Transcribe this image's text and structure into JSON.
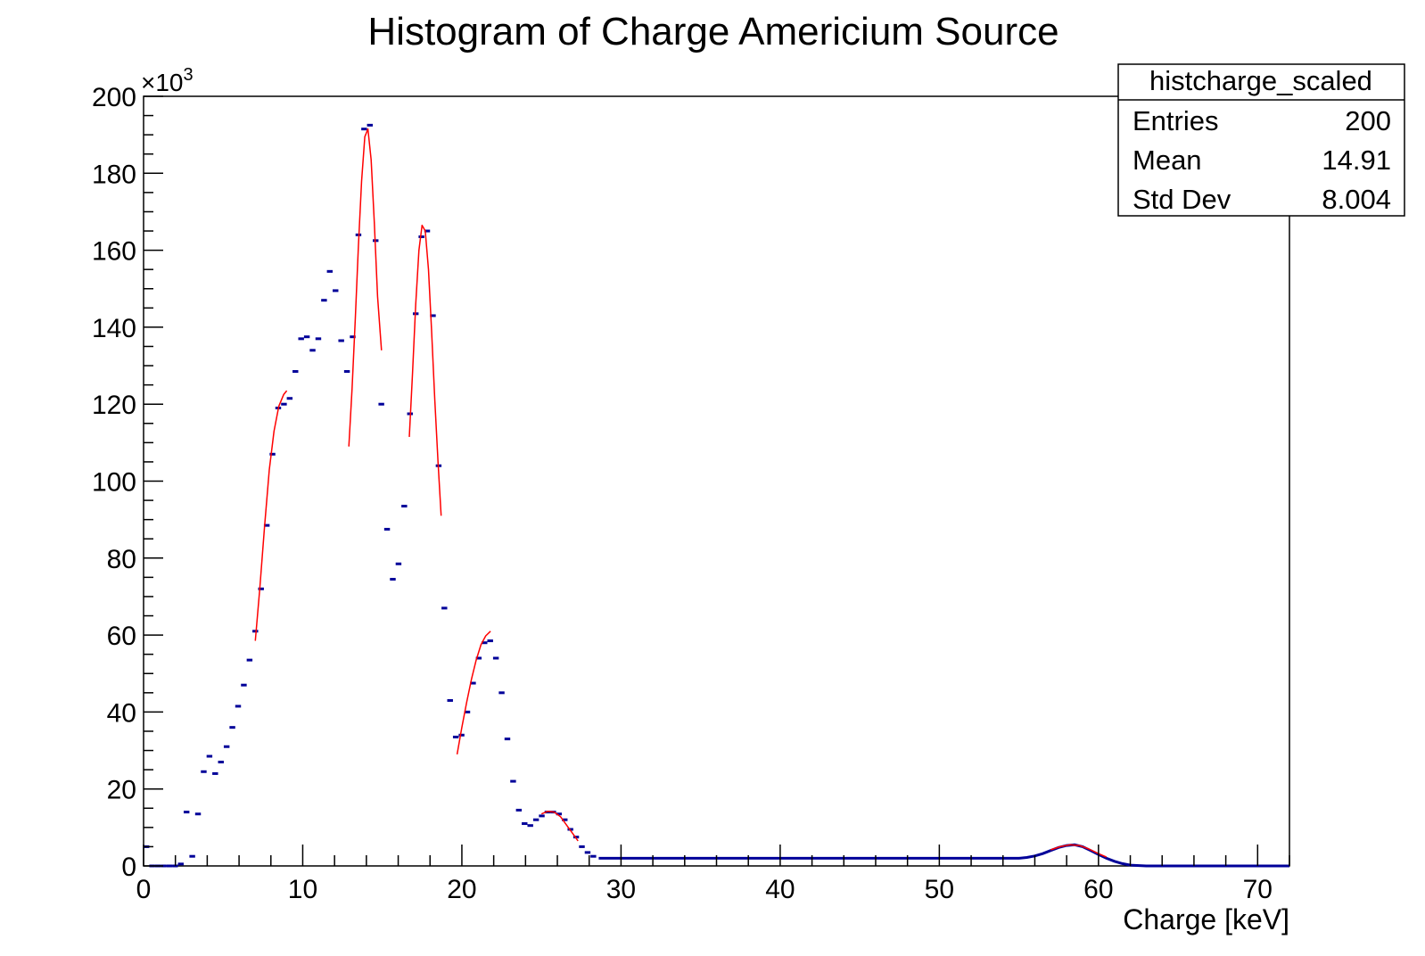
{
  "chart_data": {
    "type": "scatter",
    "title": "Histogram of Charge Americium Source",
    "xlabel": "Charge [keV]",
    "ylabel": "",
    "xlim": [
      0,
      72
    ],
    "ylim": [
      0,
      200000
    ],
    "y_exponent_label": "×10",
    "y_exponent_power": "3",
    "x_ticks": [
      0,
      10,
      20,
      30,
      40,
      50,
      60,
      70
    ],
    "x_tick_labels": [
      "0",
      "10",
      "20",
      "30",
      "40",
      "50",
      "60",
      "70"
    ],
    "y_ticks": [
      0,
      20000,
      40000,
      60000,
      80000,
      100000,
      120000,
      140000,
      160000,
      180000,
      200000
    ],
    "y_tick_labels": [
      "0",
      "20",
      "40",
      "60",
      "80",
      "100",
      "120",
      "140",
      "160",
      "180",
      "200"
    ],
    "grid": false,
    "legend": "none",
    "stats_box": {
      "title": "histcharge_scaled",
      "rows": [
        {
          "label": "Entries",
          "value": "200"
        },
        {
          "label": "Mean",
          "value": "14.91"
        },
        {
          "label": "Std Dev",
          "value": "8.004"
        }
      ]
    },
    "colors": {
      "data": "#000099",
      "fit": "#ff0000"
    },
    "series": [
      {
        "name": "histcharge_scaled",
        "kind": "points",
        "bin_width": 0.36,
        "x": [
          0.18,
          0.54,
          0.9,
          1.26,
          1.62,
          1.98,
          2.34,
          2.7,
          3.06,
          3.42,
          3.78,
          4.14,
          4.5,
          4.86,
          5.22,
          5.58,
          5.94,
          6.3,
          6.66,
          7.02,
          7.38,
          7.74,
          8.1,
          8.46,
          8.82,
          9.18,
          9.54,
          9.9,
          10.26,
          10.62,
          10.98,
          11.34,
          11.7,
          12.06,
          12.42,
          12.78,
          13.14,
          13.5,
          13.86,
          14.22,
          14.58,
          14.94,
          15.3,
          15.66,
          16.02,
          16.38,
          16.74,
          17.1,
          17.46,
          17.82,
          18.18,
          18.54,
          18.9,
          19.26,
          19.62,
          19.98,
          20.34,
          20.7,
          21.06,
          21.42,
          21.78,
          22.14,
          22.5,
          22.86,
          23.22,
          23.58,
          23.94,
          24.3,
          24.66,
          25.02,
          25.38,
          25.74,
          26.1,
          26.46,
          26.82,
          27.18,
          27.54,
          27.9,
          28.26
        ],
        "y": [
          5000,
          0,
          0,
          0,
          0,
          0,
          500,
          14000,
          2500,
          13500,
          24500,
          28500,
          24000,
          27000,
          31000,
          36000,
          41500,
          47000,
          53500,
          61000,
          72000,
          88500,
          107000,
          119000,
          120000,
          121500,
          128500,
          137000,
          137500,
          134000,
          137000,
          147000,
          154500,
          149500,
          136500,
          128500,
          137500,
          164000,
          191500,
          192500,
          162500,
          120000,
          87500,
          74500,
          78500,
          93500,
          117500,
          143500,
          163500,
          165000,
          143000,
          104000,
          67000,
          43000,
          33500,
          34000,
          40000,
          47500,
          54000,
          58000,
          58500,
          54000,
          45000,
          33000,
          22000,
          14500,
          11000,
          10500,
          12000,
          13000,
          14000,
          14000,
          13500,
          12000,
          9500,
          7500,
          5000,
          3500,
          2500
        ]
      },
      {
        "name": "histcharge_scaled_tail",
        "kind": "step",
        "x": [
          28.6,
          29,
          30,
          31,
          32,
          33,
          34,
          35,
          36,
          37,
          38,
          39,
          40,
          41,
          42,
          43,
          44,
          45,
          46,
          47,
          48,
          49,
          50,
          51,
          52,
          53,
          54,
          55,
          55.5,
          56,
          56.5,
          57,
          57.5,
          58,
          58.5,
          59,
          59.5,
          60,
          60.5,
          61,
          61.5,
          62,
          63,
          64,
          65,
          66,
          67,
          68,
          69,
          70,
          71,
          72
        ],
        "y": [
          2000,
          2000,
          2000,
          2000,
          2000,
          2000,
          2000,
          2000,
          2000,
          2000,
          2000,
          2000,
          2000,
          2000,
          2000,
          2000,
          2000,
          2000,
          2000,
          2000,
          2000,
          2000,
          2000,
          2000,
          2000,
          2000,
          2000,
          2000,
          2200,
          2600,
          3200,
          4000,
          4800,
          5300,
          5500,
          5000,
          4000,
          3000,
          2000,
          1200,
          600,
          200,
          0,
          0,
          0,
          0,
          0,
          0,
          0,
          0,
          0,
          0
        ]
      },
      {
        "name": "fit1",
        "kind": "line",
        "x": [
          7.02,
          7.3,
          7.6,
          7.9,
          8.2,
          8.5,
          8.8,
          9.0
        ],
        "y": [
          58500,
          72000,
          88000,
          103000,
          113000,
          119500,
          122500,
          123500
        ]
      },
      {
        "name": "fit2",
        "kind": "line",
        "x": [
          12.9,
          13.1,
          13.3,
          13.5,
          13.7,
          13.9,
          14.1,
          14.3,
          14.5,
          14.7,
          14.95
        ],
        "y": [
          109000,
          124000,
          142000,
          161000,
          178000,
          189500,
          191500,
          183500,
          167000,
          148000,
          134000
        ]
      },
      {
        "name": "fit3",
        "kind": "line",
        "x": [
          16.7,
          16.9,
          17.1,
          17.3,
          17.5,
          17.7,
          17.9,
          18.1,
          18.3,
          18.5,
          18.7
        ],
        "y": [
          111500,
          128000,
          146000,
          160000,
          166500,
          165000,
          155000,
          139000,
          121000,
          105000,
          91000
        ]
      },
      {
        "name": "fit4",
        "kind": "line",
        "x": [
          19.7,
          20.0,
          20.3,
          20.6,
          20.9,
          21.2,
          21.5,
          21.8
        ],
        "y": [
          29000,
          36000,
          42500,
          48500,
          53500,
          57500,
          59800,
          61000
        ]
      },
      {
        "name": "fit5",
        "kind": "line",
        "x": [
          25.0,
          25.4,
          25.8,
          26.2,
          26.6,
          27.0,
          27.3
        ],
        "y": [
          13500,
          14200,
          14000,
          12800,
          10500,
          8200,
          6500
        ]
      },
      {
        "name": "fit6",
        "kind": "line",
        "x": [
          57.0,
          57.6,
          58.2,
          58.8,
          59.4,
          60.0,
          60.5
        ],
        "y": [
          4200,
          5000,
          5500,
          5300,
          4400,
          3200,
          2300
        ]
      }
    ]
  }
}
